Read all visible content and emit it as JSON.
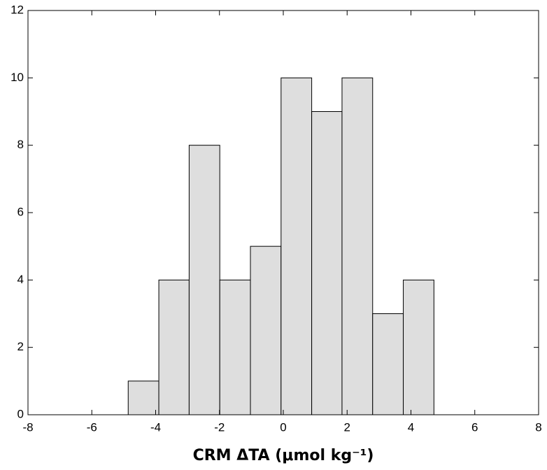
{
  "chart_data": {
    "type": "histogram",
    "xlabel": "CRM ΔTA (μmol kg⁻¹)",
    "bins": [
      -4.86,
      -3.9,
      -2.95,
      -1.99,
      -1.03,
      -0.07,
      0.89,
      1.84,
      2.8,
      3.76,
      4.72
    ],
    "values": [
      1,
      4,
      8,
      4,
      5,
      10,
      9,
      10,
      3,
      4
    ],
    "color": "#dedede",
    "xlim": [
      -8,
      8
    ],
    "xticks": [
      -8,
      -6,
      -4,
      -2,
      0,
      2,
      4,
      6,
      8
    ],
    "ylim": [
      0,
      12
    ],
    "yticks": [
      0,
      2,
      4,
      6,
      8,
      10,
      12
    ],
    "grid": false
  }
}
